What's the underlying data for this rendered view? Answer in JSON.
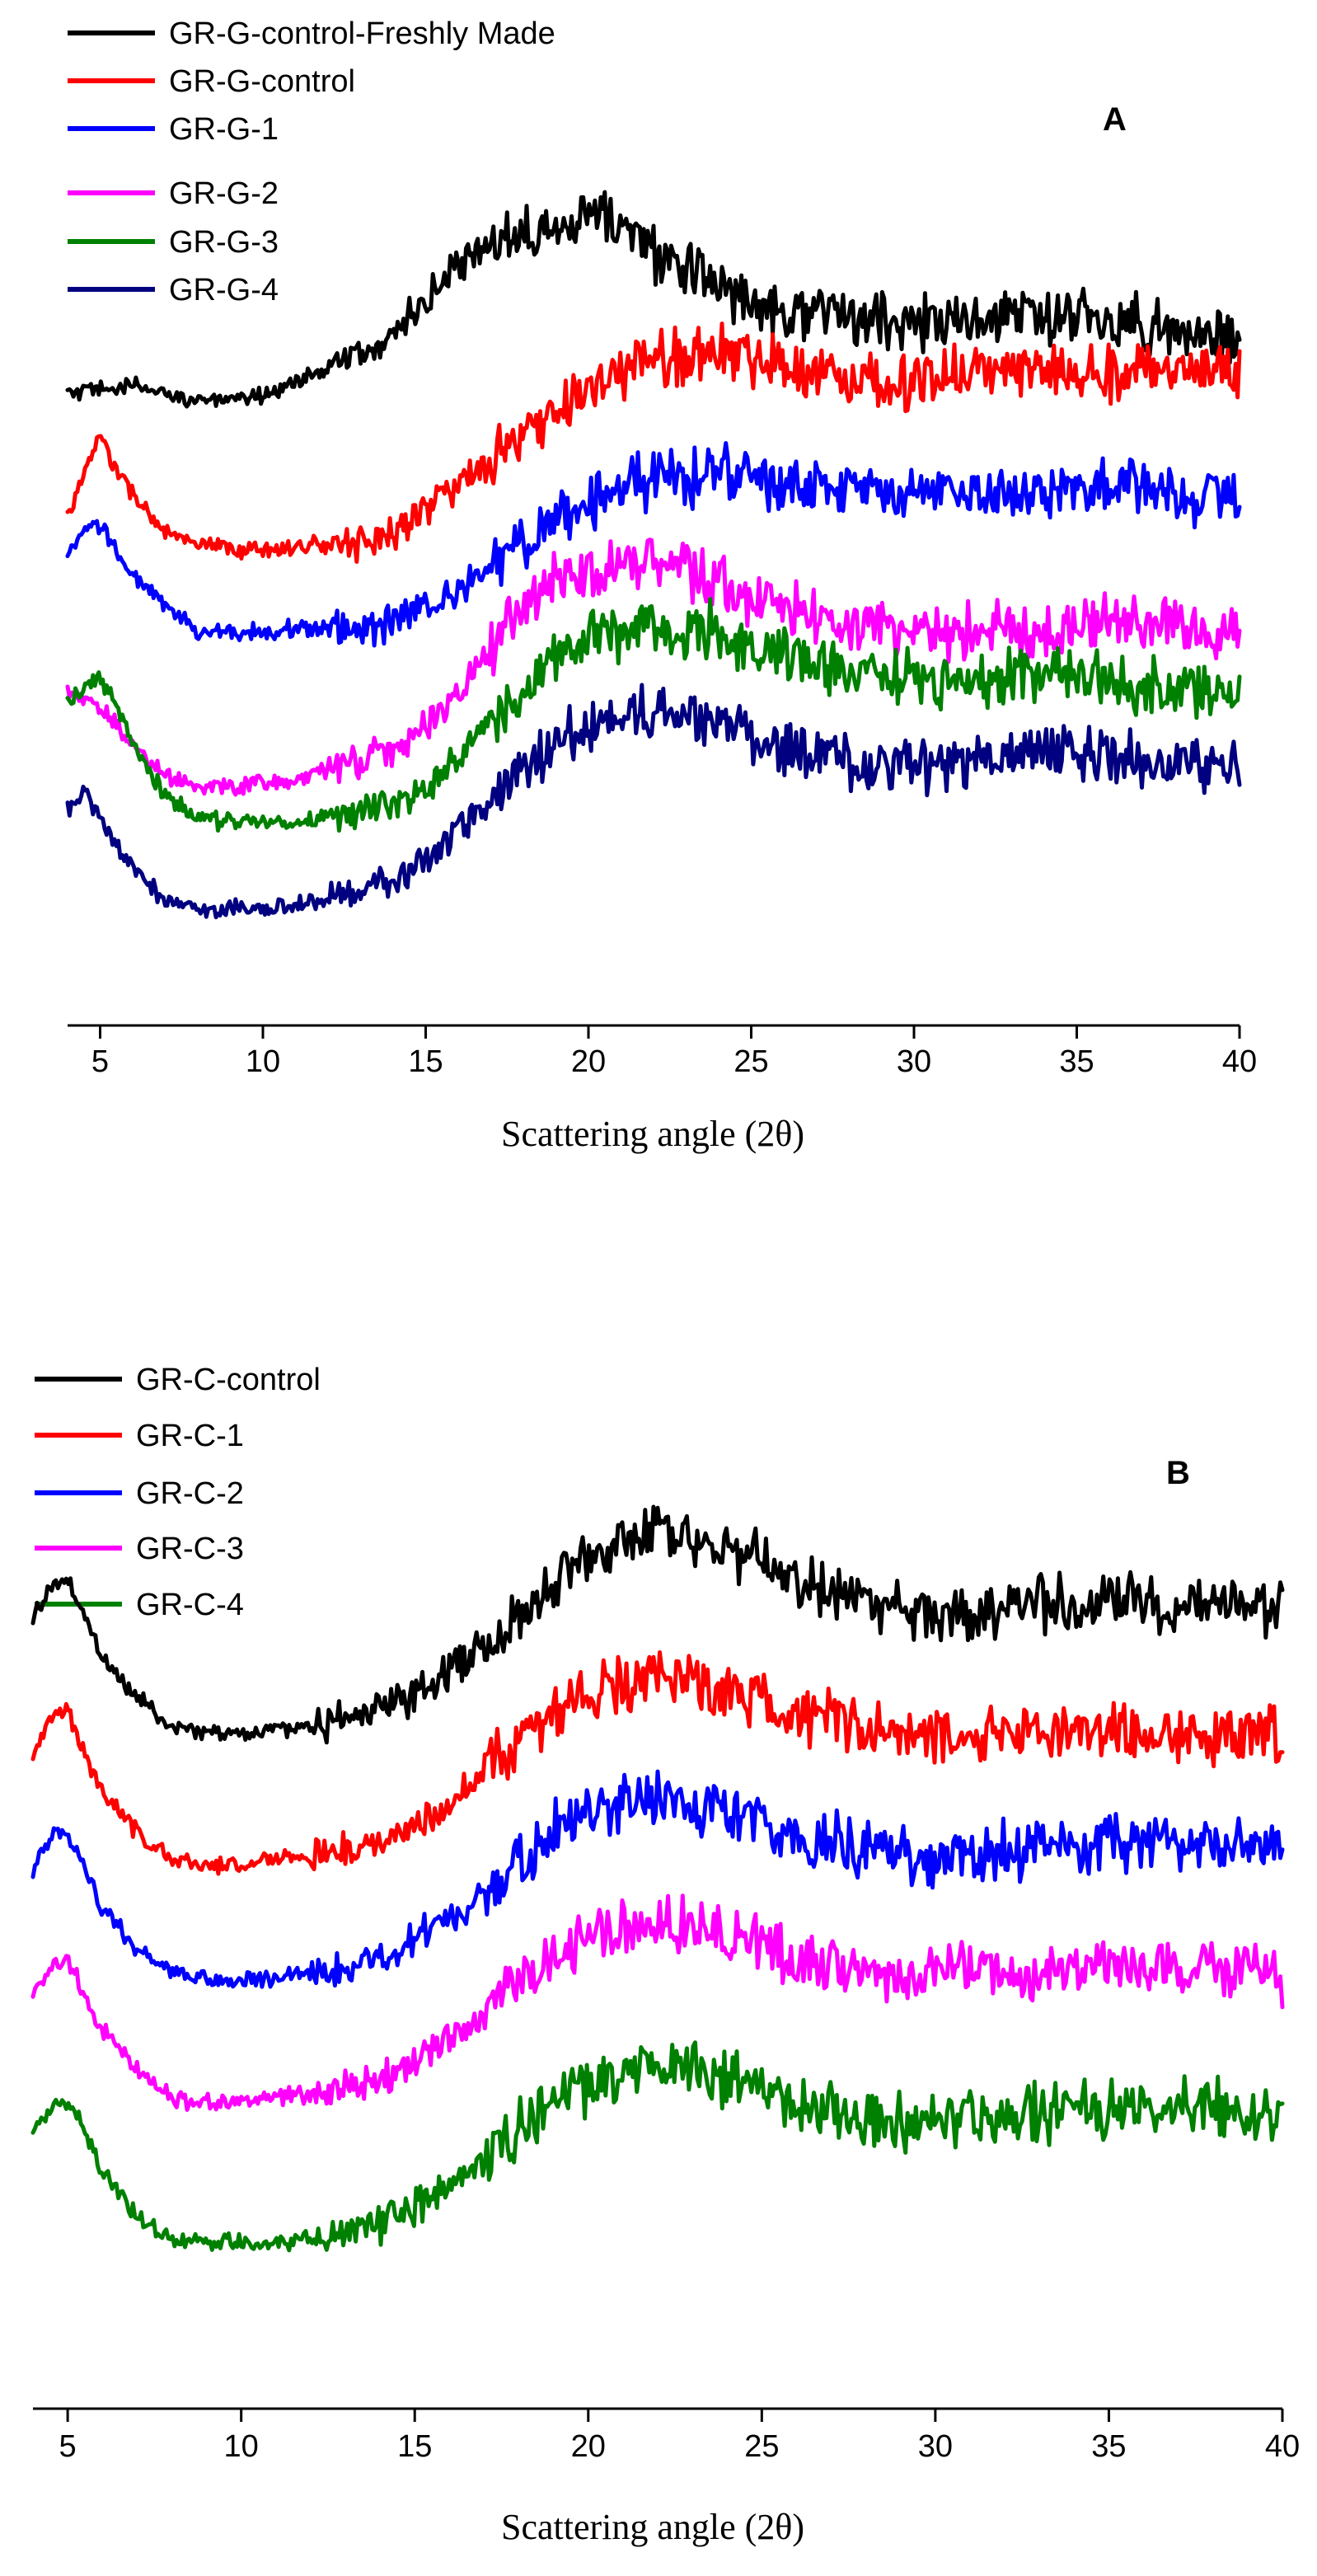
{
  "chart_data": [
    {
      "type": "line",
      "panel_label": "A",
      "title": "",
      "xlabel": "Scattering angle (2θ)",
      "ylabel": "",
      "xlim": [
        4,
        40
      ],
      "ylim": [
        0,
        100
      ],
      "xticks": [
        5,
        10,
        15,
        20,
        25,
        30,
        35,
        40
      ],
      "legend_position": "top-left",
      "grid": false,
      "series": [
        {
          "name": "GR-G-control-Freshly Made",
          "color": "#000000",
          "x": [
            4,
            5,
            6,
            7,
            8,
            9,
            10,
            11,
            12,
            13,
            14,
            15,
            16,
            17,
            18,
            19,
            20,
            21,
            22,
            23,
            24,
            25,
            26,
            27,
            28,
            29,
            30,
            31,
            32,
            33,
            34,
            35,
            36,
            37,
            38,
            39,
            40
          ],
          "y": [
            73,
            73.5,
            74,
            73,
            72.5,
            72,
            73,
            74.5,
            76,
            77.5,
            80,
            84,
            87.5,
            90.5,
            92.5,
            92.5,
            94,
            92.5,
            89.5,
            87.5,
            85.5,
            84,
            83,
            82.5,
            82,
            81.5,
            81.5,
            81.5,
            81.5,
            82,
            82,
            82,
            81.5,
            81,
            80.5,
            80,
            79
          ]
        },
        {
          "name": "GR-G-control",
          "color": "#ff0000",
          "x": [
            4,
            4.5,
            5,
            5.5,
            6,
            7,
            8,
            9,
            10,
            11,
            12,
            13,
            14,
            15,
            16,
            17,
            18,
            19,
            20,
            21,
            22,
            23,
            24,
            25,
            26,
            27,
            28,
            29,
            30,
            31,
            32,
            33,
            34,
            35,
            36,
            37,
            38,
            39,
            40
          ],
          "y": [
            59,
            63.5,
            68.5,
            64,
            61.5,
            57,
            55.5,
            55,
            55,
            55.5,
            55.5,
            56,
            57,
            60,
            62.5,
            65,
            68,
            71,
            73.5,
            75.5,
            77,
            77.5,
            78,
            77.5,
            76.5,
            75.5,
            75,
            74.5,
            74.5,
            75,
            75.5,
            76,
            76,
            75.5,
            75.5,
            76,
            76,
            75.5,
            76
          ]
        },
        {
          "name": "GR-G-1",
          "color": "#0000ff",
          "x": [
            4,
            4.5,
            5,
            5.5,
            6,
            7,
            8,
            9,
            10,
            11,
            12,
            13,
            14,
            15,
            16,
            17,
            18,
            19,
            20,
            21,
            22,
            23,
            24,
            25,
            26,
            27,
            28,
            29,
            30,
            31,
            32,
            33,
            34,
            35,
            36,
            37,
            38,
            39,
            40
          ],
          "y": [
            54,
            57,
            58,
            55,
            52,
            48.5,
            45.5,
            45.5,
            45.5,
            46,
            46,
            46,
            46.5,
            48.5,
            50.5,
            53,
            56,
            58.5,
            60.5,
            62,
            63,
            63.5,
            64,
            63.5,
            62.5,
            62,
            62,
            61.5,
            61.5,
            61.5,
            61.5,
            61.5,
            62,
            62,
            62,
            62,
            61,
            61,
            61.5
          ]
        },
        {
          "name": "GR-G-2",
          "color": "#ff00ff",
          "x": [
            4,
            4.5,
            5,
            5.5,
            6,
            7,
            8,
            9,
            10,
            11,
            12,
            13,
            14,
            15,
            16,
            17,
            18,
            19,
            20,
            21,
            22,
            23,
            24,
            25,
            26,
            27,
            28,
            29,
            30,
            31,
            32,
            33,
            34,
            35,
            36,
            37,
            38,
            39,
            40
          ],
          "y": [
            39,
            37.5,
            36.5,
            35,
            32.5,
            29,
            27.5,
            27.5,
            28,
            28.5,
            29.5,
            30.5,
            32,
            35,
            38.5,
            43.5,
            48.5,
            51.5,
            53,
            53.5,
            53.5,
            53,
            51.5,
            49,
            48,
            47.5,
            46.5,
            46,
            46,
            45.5,
            45.5,
            46,
            46,
            46.5,
            46.5,
            46,
            46,
            46,
            45.5
          ]
        },
        {
          "name": "GR-G-3",
          "color": "#008000",
          "x": [
            4,
            4.5,
            5,
            5.5,
            6,
            7,
            8,
            9,
            10,
            11,
            12,
            13,
            14,
            15,
            16,
            17,
            18,
            19,
            20,
            21,
            22,
            23,
            24,
            25,
            26,
            27,
            28,
            29,
            30,
            31,
            32,
            33,
            34,
            35,
            36,
            37,
            38,
            39,
            40
          ],
          "y": [
            37,
            39,
            40,
            37,
            32.5,
            26.5,
            24,
            23.5,
            23.5,
            23.5,
            24,
            24.5,
            25.5,
            27.5,
            31,
            35,
            39,
            42.5,
            44.5,
            45.5,
            46,
            46,
            45.5,
            44.5,
            43,
            42,
            41,
            40.5,
            40,
            40,
            40,
            40.5,
            40.5,
            40.5,
            40,
            39.5,
            39,
            39,
            38.5
          ]
        },
        {
          "name": "GR-G-4",
          "color": "#000080",
          "x": [
            4,
            4.5,
            5,
            5.5,
            6,
            7,
            8,
            9,
            10,
            11,
            12,
            13,
            14,
            15,
            16,
            17,
            18,
            19,
            20,
            21,
            22,
            23,
            24,
            25,
            26,
            27,
            28,
            29,
            30,
            31,
            32,
            33,
            34,
            35,
            36,
            37,
            38,
            39,
            40
          ],
          "y": [
            25,
            27,
            24,
            21,
            18,
            14.5,
            13.5,
            13.5,
            13.5,
            14,
            14.5,
            15.5,
            17,
            19.5,
            22.5,
            26,
            29.5,
            32.5,
            35,
            36,
            36.5,
            36,
            35,
            33.5,
            32,
            31,
            30.5,
            30,
            30,
            30.5,
            31,
            31,
            31.5,
            31.5,
            31,
            30.5,
            30.5,
            30,
            29.5
          ]
        }
      ]
    },
    {
      "type": "line",
      "panel_label": "B",
      "title": "",
      "xlabel": "Scattering angle (2θ)",
      "ylabel": "",
      "xlim": [
        4,
        40
      ],
      "ylim": [
        0,
        100
      ],
      "xticks": [
        5,
        10,
        15,
        20,
        25,
        30,
        35,
        40
      ],
      "legend_position": "top-left",
      "grid": false,
      "series": [
        {
          "name": "GR-C-control",
          "color": "#000000",
          "x": [
            4,
            4.5,
            5,
            5.5,
            6,
            7,
            8,
            9,
            10,
            11,
            12,
            13,
            14,
            15,
            16,
            17,
            18,
            19,
            20,
            21,
            22,
            23,
            24,
            25,
            26,
            27,
            28,
            29,
            30,
            31,
            32,
            33,
            34,
            35,
            36,
            37,
            38,
            39,
            40
          ],
          "y": [
            88,
            91,
            92,
            88,
            83.5,
            79,
            76,
            75,
            75,
            75.5,
            76,
            76.5,
            77.5,
            79.5,
            82,
            85,
            88,
            92,
            95,
            96.5,
            97.5,
            97.5,
            96,
            94,
            92,
            90.5,
            89.5,
            89,
            88.5,
            88.5,
            89,
            89.5,
            90,
            90,
            89.5,
            89.5,
            89.5,
            89,
            89
          ]
        },
        {
          "name": "GR-C-1",
          "color": "#ff0000",
          "x": [
            4,
            4.5,
            5,
            5.5,
            6,
            7,
            8,
            9,
            10,
            11,
            12,
            13,
            14,
            15,
            16,
            17,
            18,
            19,
            20,
            21,
            22,
            23,
            24,
            25,
            26,
            27,
            28,
            29,
            30,
            31,
            32,
            33,
            34,
            35,
            36,
            37,
            38,
            39,
            40
          ],
          "y": [
            73,
            76.5,
            77.5,
            73,
            68.5,
            64,
            61,
            60.5,
            60.5,
            61,
            61.5,
            62,
            63,
            65,
            67.5,
            71,
            74,
            77,
            79.5,
            80.5,
            81,
            80.5,
            79.5,
            78.5,
            77,
            76.5,
            75.5,
            75.5,
            75,
            75,
            75,
            75.5,
            75.5,
            75.5,
            75.5,
            75,
            75,
            75,
            74.5
          ]
        },
        {
          "name": "GR-C-2",
          "color": "#0000ff",
          "x": [
            4,
            4.5,
            5,
            5.5,
            6,
            7,
            8,
            9,
            10,
            11,
            12,
            13,
            14,
            15,
            16,
            17,
            18,
            19,
            20,
            21,
            22,
            23,
            24,
            25,
            26,
            27,
            28,
            29,
            30,
            31,
            32,
            33,
            34,
            35,
            36,
            37,
            38,
            39,
            40
          ],
          "y": [
            60,
            63.5,
            64,
            60,
            55.5,
            51,
            48.5,
            47.5,
            47.5,
            48,
            48.5,
            49,
            50,
            52,
            54.5,
            57.5,
            60.5,
            64,
            66.5,
            67.5,
            68,
            67.5,
            66.5,
            65,
            63.5,
            63,
            62,
            62,
            61.5,
            61.5,
            62,
            62.5,
            62.5,
            63,
            63,
            62.5,
            62.5,
            62,
            62
          ]
        },
        {
          "name": "GR-C-3",
          "color": "#ff00ff",
          "x": [
            4,
            4.5,
            5,
            5.5,
            6,
            7,
            8,
            9,
            10,
            11,
            12,
            13,
            14,
            15,
            16,
            17,
            18,
            19,
            20,
            21,
            22,
            23,
            24,
            25,
            26,
            27,
            28,
            29,
            30,
            31,
            32,
            33,
            34,
            35,
            36,
            37,
            38,
            39,
            40
          ],
          "y": [
            46,
            49,
            50,
            46,
            42,
            37.5,
            34.5,
            34,
            34,
            34.5,
            35,
            35.5,
            36.5,
            38.5,
            41,
            44,
            47,
            50,
            52.5,
            53.5,
            54,
            53.5,
            52.5,
            51.5,
            50,
            49.5,
            49,
            48.5,
            48.5,
            48.5,
            48.5,
            49,
            49,
            49,
            49,
            49,
            48.5,
            48.5,
            48
          ]
        },
        {
          "name": "GR-C-4",
          "color": "#008000",
          "x": [
            4,
            4.5,
            5,
            5.5,
            6,
            7,
            8,
            9,
            10,
            11,
            12,
            13,
            14,
            15,
            16,
            17,
            18,
            19,
            20,
            21,
            22,
            23,
            24,
            25,
            26,
            27,
            28,
            29,
            30,
            31,
            32,
            33,
            34,
            35,
            36,
            37,
            38,
            39,
            40
          ],
          "y": [
            31,
            33.5,
            34,
            31,
            26.5,
            21.5,
            19,
            18.5,
            18.5,
            18.5,
            19,
            19.5,
            20.5,
            22.5,
            25,
            28,
            31,
            34,
            36,
            37.5,
            38,
            37.5,
            36.5,
            35,
            33.5,
            33,
            32,
            32,
            32,
            32.5,
            32.5,
            33,
            33,
            33,
            33.5,
            33.5,
            33.5,
            33.5,
            33
          ]
        }
      ]
    }
  ]
}
